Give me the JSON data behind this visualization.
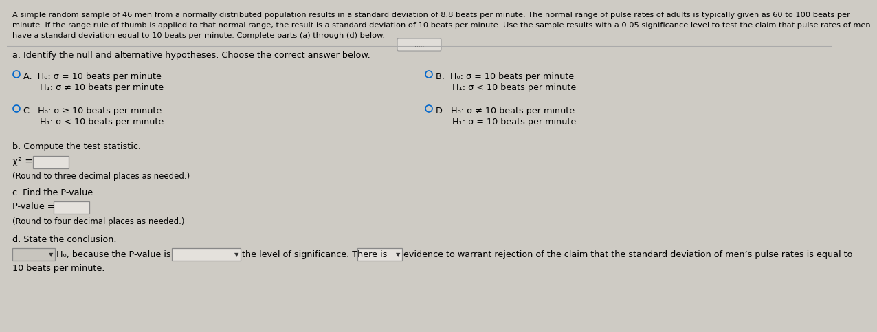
{
  "bg_color": "#cecbc4",
  "panel_color": "#d4d1ca",
  "text_color": "#000000",
  "title_line1": "A simple random sample of 46 men from a normally distributed population results in a standard deviation of 8.8 beats per minute. The normal range of pulse rates of adults is typically given as 60 to 100 beats per",
  "title_line2": "minute. If the range rule of thumb is applied to that normal range, the result is a standard deviation of 10 beats per minute. Use the sample results with a 0.05 significance level to test the claim that pulse rates of men",
  "title_line3": "have a standard deviation equal to 10 beats per minute. Complete parts (a) through (d) below.",
  "part_a_header": "a. Identify the null and alternative hypotheses. Choose the correct answer below.",
  "optA_h0": "A.  H₀: σ = 10 beats per minute",
  "optA_h1": "      H₁: σ ≠ 10 beats per minute",
  "optB_h0": "B.  H₀: σ = 10 beats per minute",
  "optB_h1": "      H₁: σ < 10 beats per minute",
  "optC_h0": "C.  H₀: σ ≥ 10 beats per minute",
  "optC_h1": "      H₁: σ < 10 beats per minute",
  "optD_h0": "D.  H₀: σ ≠ 10 beats per minute",
  "optD_h1": "      H₁: σ = 10 beats per minute",
  "part_b_header": "b. Compute the test statistic.",
  "chi_label": "χ² =",
  "round_3": "(Round to three decimal places as needed.)",
  "part_c_header": "c. Find the P-value.",
  "pvalue_label": "P-value =",
  "round_4": "(Round to four decimal places as needed.)",
  "part_d_header": "d. State the conclusion.",
  "concl_mid": "H₀, because the P-value is",
  "concl_level": "the level of significance. There is",
  "concl_end": "evidence to warrant rejection of the claim that the standard deviation of men’s pulse rates is equal to",
  "concl_end2": "10 beats per minute.",
  "dots": ".....",
  "fs_title": 8.2,
  "fs_body": 9.2,
  "fs_small": 8.5
}
